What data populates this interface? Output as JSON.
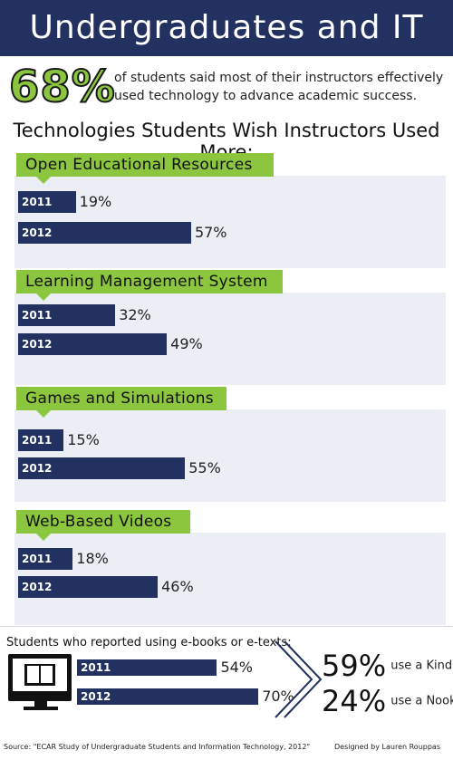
{
  "header": {
    "title": "Undergraduates and IT"
  },
  "headline": {
    "percent": "68%",
    "text": "of students said most of their instructors effectively used technology to advance academic success."
  },
  "subtitle": "Technologies Students Wish Instructors Used More:",
  "chart_data": [
    {
      "type": "bar",
      "title": "Open Educational Resources",
      "categories": [
        "2011",
        "2012"
      ],
      "values": [
        19,
        57
      ],
      "value_labels": [
        "19%",
        "57%"
      ],
      "unit": "%"
    },
    {
      "type": "bar",
      "title": "Learning Management System",
      "categories": [
        "2011",
        "2012"
      ],
      "values": [
        32,
        49
      ],
      "value_labels": [
        "32%",
        "49%"
      ],
      "unit": "%"
    },
    {
      "type": "bar",
      "title": "Games and Simulations",
      "categories": [
        "2011",
        "2012"
      ],
      "values": [
        15,
        55
      ],
      "value_labels": [
        "15%",
        "55%"
      ],
      "unit": "%"
    },
    {
      "type": "bar",
      "title": "Web-Based Videos",
      "categories": [
        "2011",
        "2012"
      ],
      "values": [
        18,
        46
      ],
      "value_labels": [
        "18%",
        "46%"
      ],
      "unit": "%"
    },
    {
      "type": "bar",
      "title": "Students who reported using e-books or e-texts:",
      "categories": [
        "2011",
        "2012"
      ],
      "values": [
        54,
        70
      ],
      "value_labels": [
        "54%",
        "70%"
      ],
      "unit": "%"
    }
  ],
  "devices": [
    {
      "percent": "59%",
      "label": "use a Kindle"
    },
    {
      "percent": "24%",
      "label": "use a Nook"
    }
  ],
  "footer": {
    "source": "Source: \"ECAR Study of Undergraduate Students and Information Technology, 2012\"",
    "designer": "Designed by Lauren Rouppas"
  },
  "colors": {
    "navy": "#22315f",
    "green": "#8cc63f",
    "panel": "#eceef5"
  }
}
